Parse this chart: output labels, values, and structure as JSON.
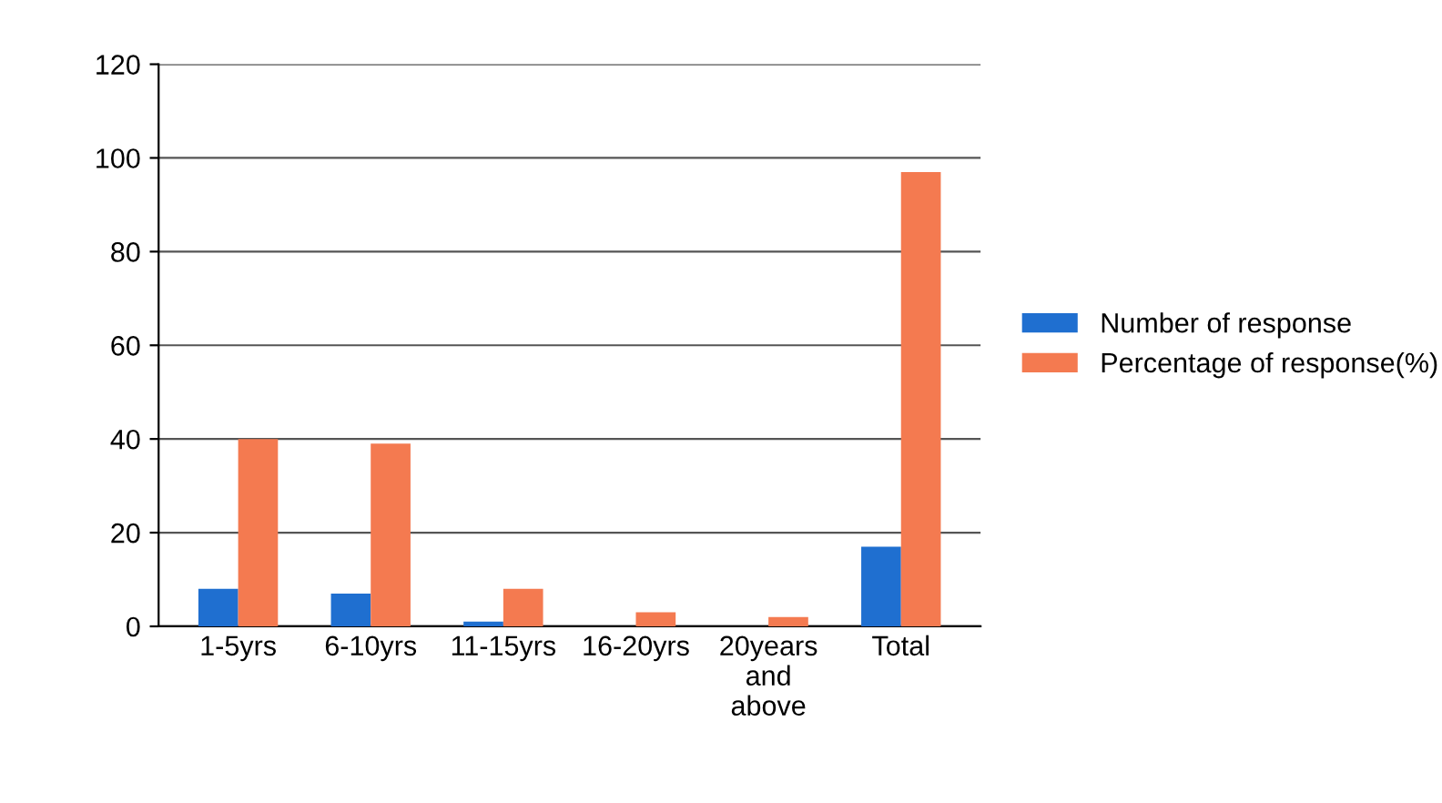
{
  "chart_data": {
    "type": "bar",
    "categories": [
      "1-5yrs",
      "6-10yrs",
      "11-15yrs",
      "16-20yrs",
      "20years\nand\nabove",
      "Total"
    ],
    "series": [
      {
        "name": "Number of response",
        "color": "#1f6fd0",
        "values": [
          8,
          7,
          1,
          0,
          0,
          17
        ]
      },
      {
        "name": "Percentage of response(%)",
        "color": "#f47a50",
        "values": [
          40,
          39,
          8,
          3,
          2,
          97
        ]
      }
    ],
    "ylim": [
      0,
      120
    ],
    "yticks": [
      0,
      20,
      40,
      60,
      80,
      100,
      120
    ],
    "grid": "y",
    "legend": "right"
  }
}
